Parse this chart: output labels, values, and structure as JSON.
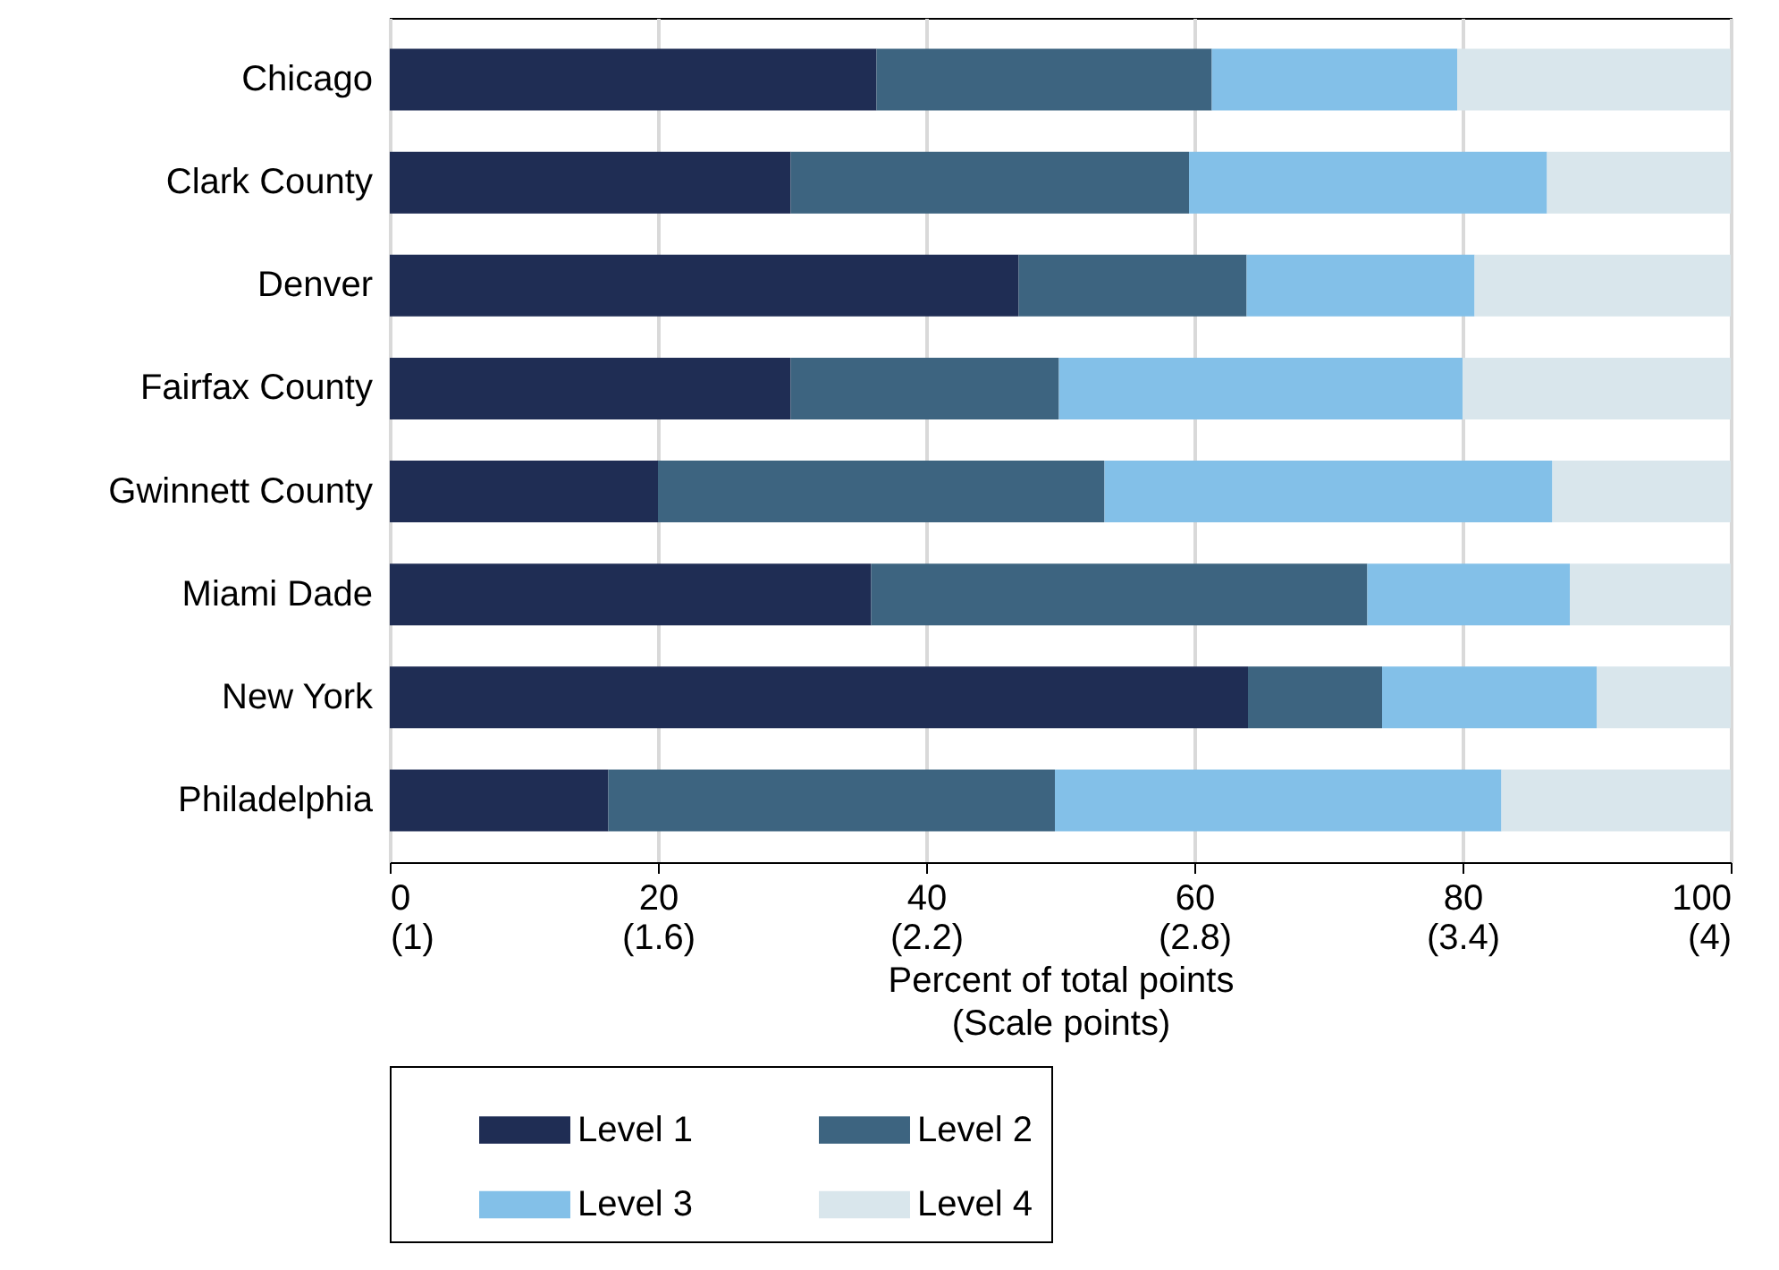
{
  "chart_data": {
    "type": "bar",
    "orientation": "horizontal",
    "stacked": true,
    "xlabel": "Percent of total points\n(Scale points)",
    "categories": [
      "Chicago",
      "Clark County",
      "Denver",
      "Fairfax County",
      "Gwinnett County",
      "Miami Dade",
      "New York",
      "Philadelphia"
    ],
    "series": [
      {
        "name": "Level 1",
        "color": "#1f2d54",
        "values": [
          36.3,
          29.9,
          46.9,
          29.9,
          20,
          35.9,
          64,
          16.3
        ]
      },
      {
        "name": "Level 2",
        "color": "#3d6480",
        "values": [
          25,
          29.7,
          17,
          20,
          33.3,
          37,
          10,
          33.3
        ]
      },
      {
        "name": "Level 3",
        "color": "#83c0e8",
        "values": [
          18.3,
          26.7,
          17,
          30.1,
          33.4,
          15.1,
          16,
          33.3
        ]
      },
      {
        "name": "Level 4",
        "color": "#d9e6ec",
        "values": [
          20.4,
          13.7,
          19.1,
          20,
          13.3,
          12,
          10,
          17.1
        ]
      }
    ],
    "xlim": [
      0,
      100
    ],
    "xticks": [
      0,
      20,
      40,
      60,
      80,
      100
    ],
    "x2lim": [
      1,
      4
    ],
    "x2ticks": [
      {
        "value": 1,
        "label": "(1)"
      },
      {
        "value": 1.6,
        "label": "(1.6)"
      },
      {
        "value": 2.2,
        "label": "(2.2)"
      },
      {
        "value": 2.8,
        "label": "(2.8)"
      },
      {
        "value": 3.4,
        "label": "(3.4)"
      },
      {
        "value": 4,
        "label": "(4)"
      }
    ],
    "grid": "x",
    "legend": "bottom"
  }
}
